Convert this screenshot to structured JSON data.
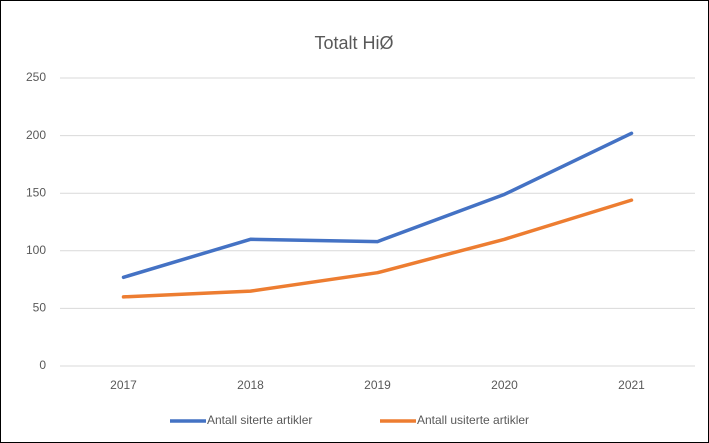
{
  "chart_data": {
    "type": "line",
    "title": "Totalt HiØ",
    "categories": [
      "2017",
      "2018",
      "2019",
      "2020",
      "2021"
    ],
    "series": [
      {
        "name": "Antall siterte artikler",
        "color": "#4472c4",
        "values": [
          77,
          110,
          108,
          149,
          202
        ]
      },
      {
        "name": "Antall usiterte artikler",
        "color": "#ed7d31",
        "values": [
          60,
          65,
          81,
          110,
          144
        ]
      }
    ],
    "ylim": [
      0,
      250
    ],
    "yticks": [
      0,
      50,
      100,
      150,
      200,
      250
    ],
    "grid": true,
    "legend": "bottom"
  }
}
